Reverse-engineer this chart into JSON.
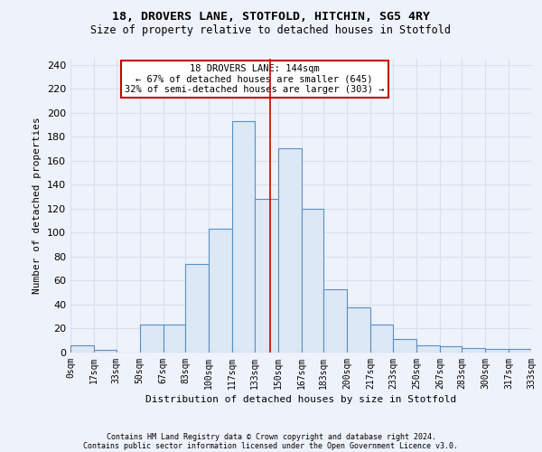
{
  "title": "18, DROVERS LANE, STOTFOLD, HITCHIN, SG5 4RY",
  "subtitle": "Size of property relative to detached houses in Stotfold",
  "xlabel": "Distribution of detached houses by size in Stotfold",
  "ylabel": "Number of detached properties",
  "footnote1": "Contains HM Land Registry data © Crown copyright and database right 2024.",
  "footnote2": "Contains public sector information licensed under the Open Government Licence v3.0.",
  "annotation_line1": "18 DROVERS LANE: 144sqm",
  "annotation_line2": "← 67% of detached houses are smaller (645)",
  "annotation_line3": "32% of semi-detached houses are larger (303) →",
  "bar_heights": [
    6,
    2,
    0,
    23,
    23,
    74,
    103,
    193,
    128,
    170,
    120,
    53,
    38,
    23,
    11,
    6,
    5,
    4,
    3,
    3
  ],
  "bin_edges": [
    0,
    17,
    33,
    50,
    67,
    83,
    100,
    117,
    133,
    150,
    167,
    183,
    200,
    217,
    233,
    250,
    267,
    283,
    300,
    317,
    333
  ],
  "tick_labels": [
    "0sqm",
    "17sqm",
    "33sqm",
    "50sqm",
    "67sqm",
    "83sqm",
    "100sqm",
    "117sqm",
    "133sqm",
    "150sqm",
    "167sqm",
    "183sqm",
    "200sqm",
    "217sqm",
    "233sqm",
    "250sqm",
    "267sqm",
    "283sqm",
    "300sqm",
    "317sqm",
    "333sqm"
  ],
  "property_size": 144,
  "bar_color": "#dce8f5",
  "bar_edge_color": "#5b8ec4",
  "vline_color": "#cc0000",
  "annotation_box_edgecolor": "#cc0000",
  "background_color": "#eef2fa",
  "grid_color": "#d8e0f0",
  "ylim": [
    0,
    245
  ],
  "yticks": [
    0,
    20,
    40,
    60,
    80,
    100,
    120,
    140,
    160,
    180,
    200,
    220,
    240
  ]
}
